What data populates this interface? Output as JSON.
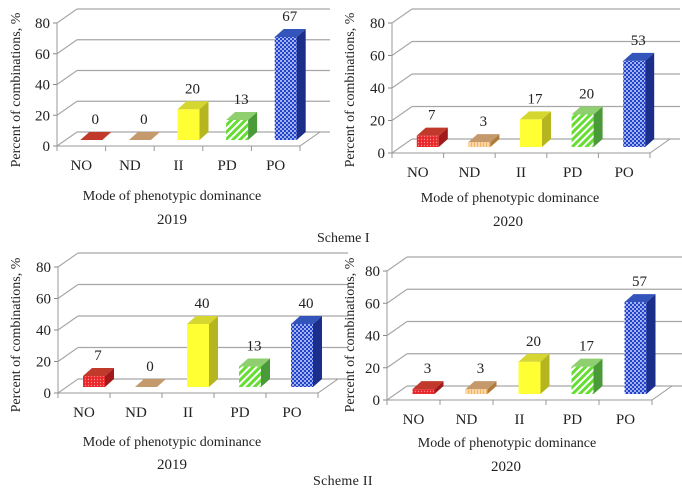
{
  "figure": {
    "scheme_labels": [
      "Scheme I",
      "Scheme II"
    ]
  },
  "category_styles": {
    "NO": {
      "front": "#e8262a",
      "side": "#a01a1c",
      "top": "#c0392b",
      "pattern": "dots",
      "pattern_color": "#ff8a8a"
    },
    "ND": {
      "front": "#f5b25a",
      "side": "#b07a3a",
      "top": "#c49a6c",
      "pattern": "vlines",
      "pattern_color": "#ffffff"
    },
    "II": {
      "front": "#ffff33",
      "side": "#b5b520",
      "top": "#d6d630",
      "pattern": "none",
      "pattern_color": "#ffff33"
    },
    "PD": {
      "front": "#66dd33",
      "side": "#4a9a3a",
      "top": "#8fcf6f",
      "pattern": "diag",
      "pattern_color": "#ffffff"
    },
    "PO": {
      "front": "#2244cc",
      "side": "#1a2e8a",
      "top": "#3355bb",
      "pattern": "checker",
      "pattern_color": "#ffffff"
    }
  },
  "chart_data": [
    {
      "type": "bar",
      "scheme": "Scheme I",
      "title": "2019",
      "xlabel": "Mode of phenotypic  dominance",
      "ylabel": "Percent  of combinations,  %",
      "categories": [
        "NO",
        "ND",
        "II",
        "PD",
        "PO"
      ],
      "values": [
        0,
        0,
        20,
        13,
        67
      ],
      "data_labels": [
        "0",
        "0",
        "20",
        "13",
        "67"
      ],
      "ylim": [
        0,
        80
      ],
      "yticks": [
        0,
        20,
        40,
        60,
        80
      ],
      "grid": true,
      "style": "3d"
    },
    {
      "type": "bar",
      "scheme": "Scheme I",
      "title": "2020",
      "xlabel": "Mode of phenotypic  dominance",
      "ylabel": "Percent  of combinations,  %",
      "categories": [
        "NO",
        "ND",
        "II",
        "PD",
        "PO"
      ],
      "values": [
        7,
        3,
        17,
        20,
        53
      ],
      "data_labels": [
        "7",
        "3",
        "17",
        "20",
        "53"
      ],
      "ylim": [
        0,
        80
      ],
      "yticks": [
        0,
        20,
        40,
        60,
        80
      ],
      "grid": true,
      "style": "3d"
    },
    {
      "type": "bar",
      "scheme": "Scheme II",
      "title": "2019",
      "xlabel": "Mode of phenotypic  dominance",
      "ylabel": "Percent  of combinations,  %",
      "categories": [
        "NO",
        "ND",
        "II",
        "PD",
        "PO"
      ],
      "values": [
        7,
        0,
        40,
        13,
        40
      ],
      "data_labels": [
        "7",
        "0",
        "40",
        "13",
        "40"
      ],
      "ylim": [
        0,
        80
      ],
      "yticks": [
        0,
        20,
        40,
        60,
        80
      ],
      "grid": true,
      "style": "3d"
    },
    {
      "type": "bar",
      "scheme": "Scheme II",
      "title": "2020",
      "xlabel": "Mode of phenotypic  dominance",
      "ylabel": "Percent  of combinations,  %",
      "categories": [
        "NO",
        "ND",
        "II",
        "PD",
        "PO"
      ],
      "values": [
        3,
        3,
        20,
        17,
        57
      ],
      "data_labels": [
        "3",
        "3",
        "20",
        "17",
        "57"
      ],
      "ylim": [
        0,
        80
      ],
      "yticks": [
        0,
        20,
        40,
        60,
        80
      ],
      "grid": true,
      "style": "3d"
    }
  ]
}
